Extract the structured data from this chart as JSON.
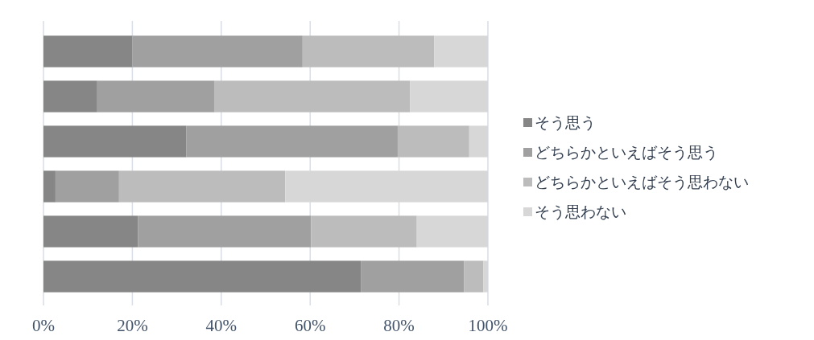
{
  "chart_data": {
    "type": "bar",
    "orientation": "horizontal",
    "stacked": true,
    "categories": [
      null,
      null,
      null,
      null,
      null,
      null
    ],
    "series": [
      {
        "name": "そう思う",
        "color": "#868686",
        "values": [
          20,
          12.1,
          32.1,
          2.7,
          21.3,
          71.4
        ]
      },
      {
        "name": "どちらかといえばそう思う",
        "color": "#a0a0a0",
        "values": [
          38.3,
          26.3,
          47.6,
          14.3,
          38.9,
          23.2
        ]
      },
      {
        "name": "どちらかといえばそう思わない",
        "color": "#bcbcbc",
        "values": [
          29.6,
          44.1,
          16.1,
          37.4,
          23.8,
          4.4
        ]
      },
      {
        "name": "そう思わない",
        "color": "#d7d7d7",
        "values": [
          12.1,
          17.5,
          4.2,
          45.6,
          16,
          1
        ]
      }
    ],
    "xlim": [
      0,
      100
    ],
    "xticks": [
      {
        "value": 0,
        "label": "0%"
      },
      {
        "value": 20,
        "label": "20%"
      },
      {
        "value": 40,
        "label": "40%"
      },
      {
        "value": 60,
        "label": "60%"
      },
      {
        "value": 80,
        "label": "80%"
      },
      {
        "value": 100,
        "label": "100%"
      }
    ],
    "grid": "x",
    "legend": "right"
  }
}
